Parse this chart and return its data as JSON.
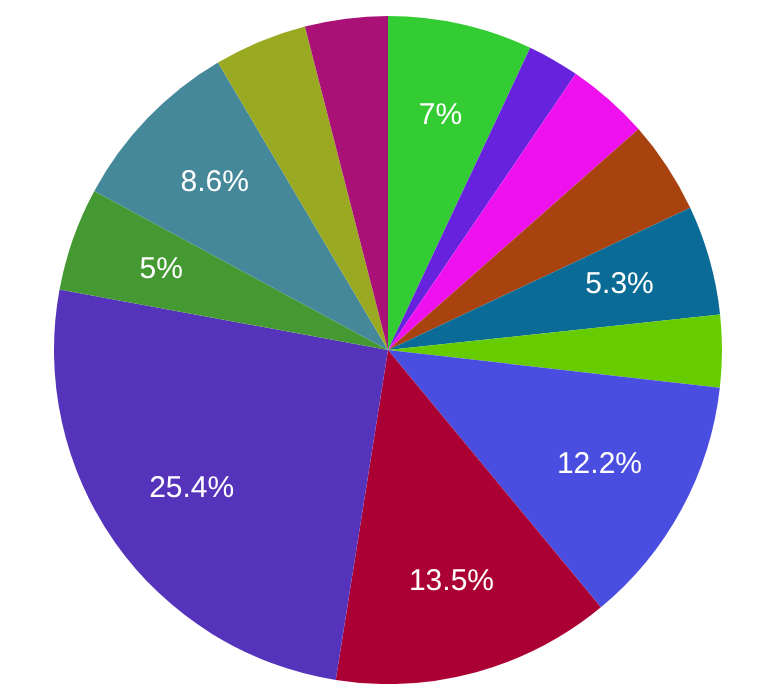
{
  "chart_data": {
    "type": "pie",
    "categories": [
      null,
      null,
      null,
      null,
      null,
      null,
      null,
      null,
      null,
      null,
      null,
      null,
      null
    ],
    "values": [
      7,
      2.5,
      4,
      4.5,
      5.3,
      3.5,
      12.2,
      13.5,
      25.4,
      5,
      8.6,
      4.5,
      4
    ],
    "value_labels": [
      "7%",
      null,
      null,
      null,
      "5.3%",
      null,
      "12.2%",
      "13.5%",
      "25.4%",
      "5%",
      "8.6%",
      null,
      null
    ],
    "colors": [
      "#33cc33",
      "#6622dd",
      "#ee11ee",
      "#a8420f",
      "#0a6c96",
      "#66cc00",
      "#4a4ee0",
      "#aa0033",
      "#5533bb",
      "#449933",
      "#448899",
      "#99aa22",
      "#aa1177"
    ],
    "legend": false
  }
}
